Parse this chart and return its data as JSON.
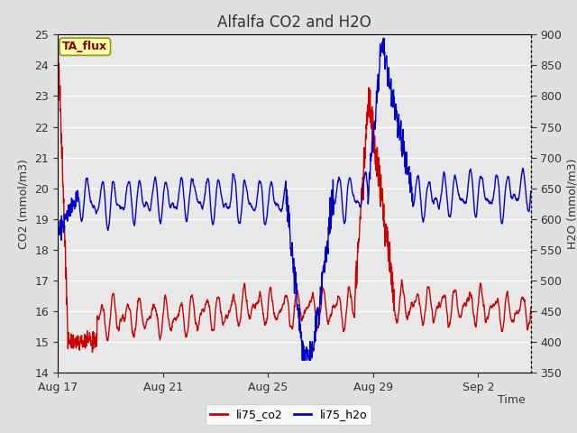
{
  "title": "Alfalfa CO2 and H2O",
  "xlabel": "Time",
  "ylabel_left": "CO2 (mmol/m3)",
  "ylabel_right": "H2O (mmol/m3)",
  "ylim_left": [
    14.0,
    25.0
  ],
  "ylim_right": [
    350,
    900
  ],
  "yticks_left": [
    14.0,
    15.0,
    16.0,
    17.0,
    18.0,
    19.0,
    20.0,
    21.0,
    22.0,
    23.0,
    24.0,
    25.0
  ],
  "yticks_right": [
    350,
    400,
    450,
    500,
    550,
    600,
    650,
    700,
    750,
    800,
    850,
    900
  ],
  "xtick_labels": [
    "Aug 17",
    "Aug 21",
    "Aug 25",
    "Aug 29",
    "Sep 2"
  ],
  "xtick_positions": [
    0,
    4,
    8,
    12,
    16
  ],
  "xlim": [
    0,
    18
  ],
  "co2_color": "#CC0000",
  "h2o_color": "#0000CC",
  "fig_bg_color": "#E0E0E0",
  "plot_bg_color": "#E8E8E8",
  "grid_color": "#FFFFFF",
  "annotation_text": "TA_flux",
  "annotation_bg": "#FFFFAA",
  "annotation_border": "#999900",
  "legend_co2": "li75_co2",
  "legend_h2o": "li75_h2o",
  "line_width": 1.0,
  "title_fontsize": 12,
  "axis_label_fontsize": 9,
  "tick_fontsize": 9,
  "n_points": 1800,
  "seed": 1234
}
